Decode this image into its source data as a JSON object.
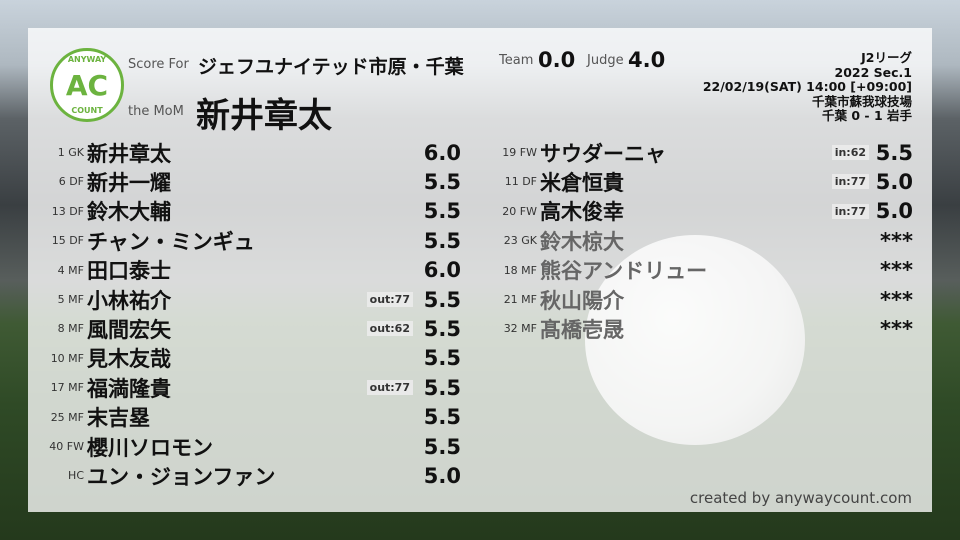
{
  "header": {
    "logo_text": "AC",
    "logo_ring_top": "ANYWAY",
    "logo_ring_bottom": "COUNT",
    "score_for_label": "Score For",
    "team": "ジェフユナイテッド市原・千葉",
    "mom_label": "the MoM",
    "mom": "新井章太",
    "team_score_label": "Team",
    "team_score": "0.0",
    "judge_label": "Judge",
    "judge_score": "4.0"
  },
  "match": {
    "league": "J2リーグ",
    "season": "2022 Sec.1",
    "datetime": "22/02/19(SAT) 14:00 [+09:00]",
    "venue": "千葉市蘇我球技場",
    "result": "千葉 0 - 1 岩手"
  },
  "left_players": [
    {
      "pos": "1 GK",
      "name": "新井章太",
      "badge": "",
      "rating": "6.0"
    },
    {
      "pos": "6 DF",
      "name": "新井一耀",
      "badge": "",
      "rating": "5.5"
    },
    {
      "pos": "13 DF",
      "name": "鈴木大輔",
      "badge": "",
      "rating": "5.5"
    },
    {
      "pos": "15 DF",
      "name": "チャン・ミンギュ",
      "badge": "",
      "rating": "5.5"
    },
    {
      "pos": "4 MF",
      "name": "田口泰士",
      "badge": "",
      "rating": "6.0"
    },
    {
      "pos": "5 MF",
      "name": "小林祐介",
      "badge": "out:77",
      "rating": "5.5"
    },
    {
      "pos": "8 MF",
      "name": "風間宏矢",
      "badge": "out:62",
      "rating": "5.5"
    },
    {
      "pos": "10 MF",
      "name": "見木友哉",
      "badge": "",
      "rating": "5.5"
    },
    {
      "pos": "17 MF",
      "name": "福満隆貴",
      "badge": "out:77",
      "rating": "5.5"
    },
    {
      "pos": "25 MF",
      "name": "末吉塁",
      "badge": "",
      "rating": "5.5"
    },
    {
      "pos": "40 FW",
      "name": "櫻川ソロモン",
      "badge": "",
      "rating": "5.5"
    },
    {
      "pos": "HC",
      "name": "ユン・ジョンファン",
      "badge": "",
      "rating": "5.0"
    }
  ],
  "right_players": [
    {
      "pos": "19 FW",
      "name": "サウダーニャ",
      "badge": "in:62",
      "rating": "5.5",
      "unused": false
    },
    {
      "pos": "11 DF",
      "name": "米倉恒貴",
      "badge": "in:77",
      "rating": "5.0",
      "unused": false
    },
    {
      "pos": "20 FW",
      "name": "高木俊幸",
      "badge": "in:77",
      "rating": "5.0",
      "unused": false
    },
    {
      "pos": "23 GK",
      "name": "鈴木椋大",
      "badge": "",
      "rating": "***",
      "unused": true
    },
    {
      "pos": "18 MF",
      "name": "熊谷アンドリュー",
      "badge": "",
      "rating": "***",
      "unused": true
    },
    {
      "pos": "21 MF",
      "name": "秋山陽介",
      "badge": "",
      "rating": "***",
      "unused": true
    },
    {
      "pos": "32 MF",
      "name": "髙橋壱晟",
      "badge": "",
      "rating": "***",
      "unused": true
    }
  ],
  "footer": {
    "credit": "created by anywaycount.com"
  },
  "colors": {
    "logo_green": "#6cb33f"
  }
}
